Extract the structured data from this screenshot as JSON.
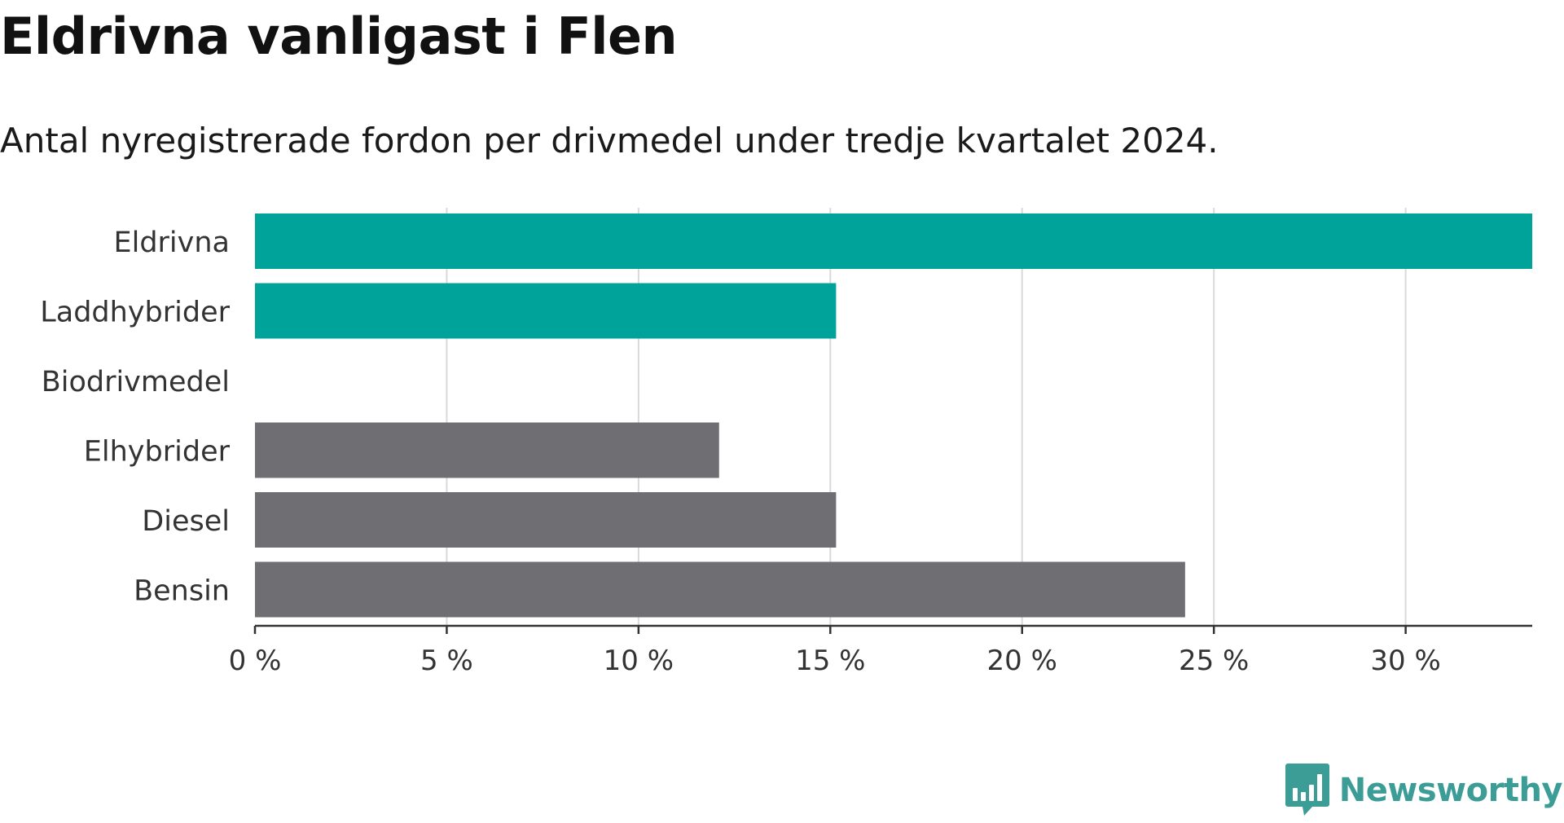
{
  "chart_data": {
    "type": "bar",
    "orientation": "horizontal",
    "title": "Eldrivna vanligast i Flen",
    "subtitle": "Antal nyregistrerade fordon per drivmedel under tredje kvartalet 2024.",
    "categories": [
      "Eldrivna",
      "Laddhybrider",
      "Biodrivmedel",
      "Elhybrider",
      "Diesel",
      "Bensin"
    ],
    "values": [
      33.3,
      15.15,
      0,
      12.1,
      15.15,
      24.25
    ],
    "colors": [
      "#00a39a",
      "#00a39a",
      "#00a39a",
      "#6e6e73",
      "#6e6e73",
      "#6e6e73"
    ],
    "xlim": [
      0,
      33.3
    ],
    "x_ticks": [
      0,
      5,
      10,
      15,
      20,
      25,
      30
    ],
    "x_tick_labels": [
      "0 %",
      "5 %",
      "10 %",
      "15 %",
      "20 %",
      "25 %",
      "30 %"
    ],
    "grid": "vertical"
  },
  "brand": {
    "name": "Newsworthy",
    "color": "#3c9d97",
    "icon": "bar-chart-speech-bubble-icon"
  }
}
